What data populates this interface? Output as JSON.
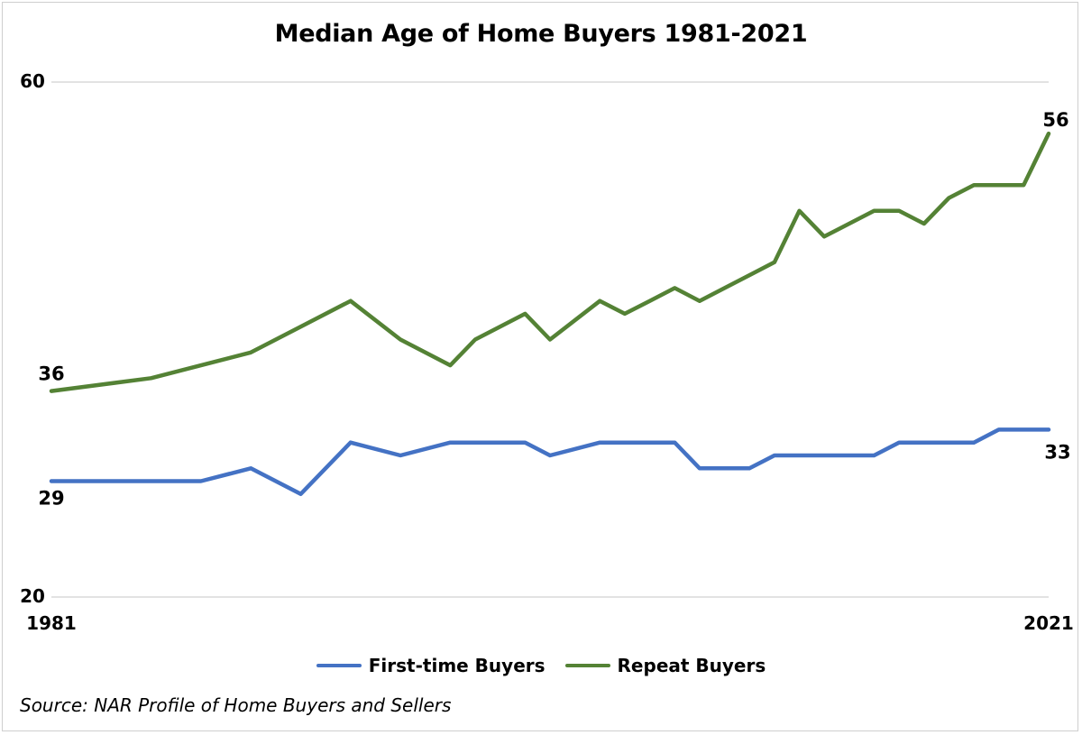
{
  "chart_data": {
    "type": "line",
    "title": "Median Age of Home Buyers 1981-2021",
    "xlabel": "",
    "ylabel": "",
    "ylim": [
      20,
      60
    ],
    "xlim": [
      1981,
      2021
    ],
    "y_ticks": [
      "60",
      "20"
    ],
    "x_ticks": [
      "1981",
      "2021"
    ],
    "grid": "horizontal at ticks",
    "legend_position": "bottom",
    "x": [
      1981,
      1985,
      1987,
      1989,
      1991,
      1993,
      1995,
      1997,
      1998,
      2000,
      2001,
      2003,
      2004,
      2005,
      2006,
      2007,
      2008,
      2009,
      2010,
      2011,
      2012,
      2013,
      2014,
      2015,
      2016,
      2017,
      2018,
      2019,
      2020,
      2021
    ],
    "series": [
      {
        "name": "First-time Buyers",
        "color": "#4472C4",
        "values": [
          29,
          29,
          29,
          30,
          28,
          32,
          31,
          32,
          32,
          32,
          31,
          32,
          32,
          32,
          32,
          30,
          30,
          30,
          31,
          31,
          31,
          31,
          31,
          32,
          32,
          32,
          32,
          33,
          33,
          33
        ]
      },
      {
        "name": "Repeat Buyers",
        "color": "#548235",
        "values": [
          36,
          37,
          38,
          39,
          41,
          43,
          40,
          38,
          40,
          42,
          40,
          43,
          42,
          43,
          44,
          43,
          44,
          45,
          46,
          50,
          48,
          49,
          50,
          50,
          49,
          51,
          52,
          52,
          52,
          56
        ]
      }
    ],
    "data_labels": [
      {
        "series": "Repeat Buyers",
        "x": 1981,
        "text": "36"
      },
      {
        "series": "Repeat Buyers",
        "x": 2021,
        "text": "56"
      },
      {
        "series": "First-time Buyers",
        "x": 1981,
        "text": "29"
      },
      {
        "series": "First-time Buyers",
        "x": 2021,
        "text": "33"
      }
    ],
    "source": "Source: NAR Profile of Home Buyers and Sellers"
  }
}
